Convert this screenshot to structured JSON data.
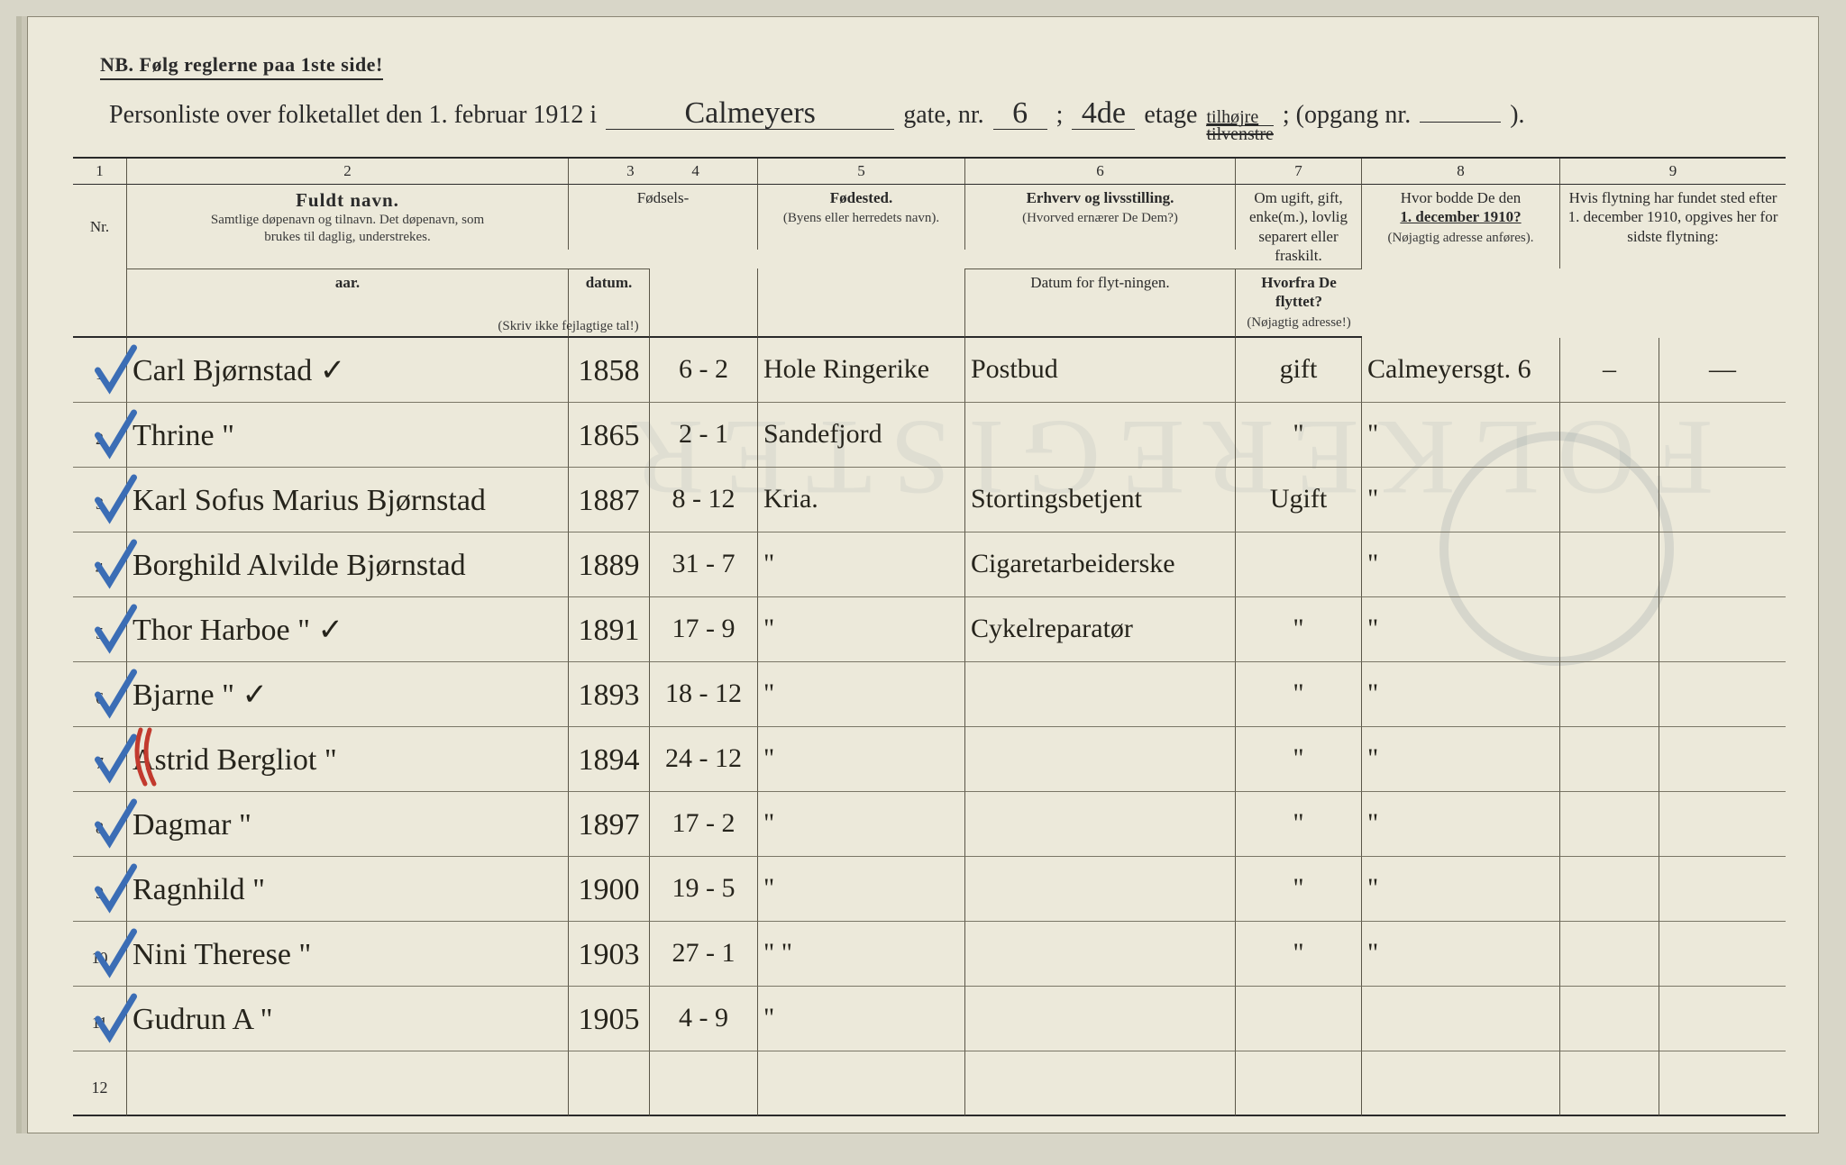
{
  "page": {
    "nb": "NB.   Følg reglerne paa 1ste side!",
    "title_prefix": "Personliste over folketallet den 1. februar 1912 i",
    "street": "Calmeyers",
    "gate_label": "gate, nr.",
    "house_nr": "6",
    "semicolon": ";",
    "floor": "4de",
    "etage_label": "etage",
    "side_top": "tilhøjre",
    "side_bot": "tilvenstre",
    "opgang": "; (opgang nr.",
    "opgang_val": "",
    "close": ")."
  },
  "colnums": [
    "1",
    "2",
    "3",
    "4",
    "5",
    "6",
    "7",
    "8",
    "9"
  ],
  "headers": {
    "nr": "Nr.",
    "name_title": "Fuldt navn.",
    "name_sub1": "Samtlige døpenavn og tilnavn.  Det døpenavn, som",
    "name_sub2": "brukes til daglig, understrekes.",
    "fodsels": "Fødsels-",
    "aar": "aar.",
    "datum": "datum.",
    "aar_note": "(Skriv ikke fejlagtige tal!)",
    "fodested": "Fødested.",
    "fodested_sub": "(Byens eller herredets navn).",
    "erhverv": "Erhverv og livsstilling.",
    "erhverv_sub": "(Hvorved ernærer De Dem?)",
    "civil": "Om ugift, gift, enke(m.), lovlig separert eller fraskilt.",
    "addr1910": "Hvor bodde De den",
    "addr1910b": "1. december 1910?",
    "addr1910_sub": "(Nøjagtig adresse anføres).",
    "move": "Hvis flytning har fundet sted efter 1. december 1910, opgives her for sidste flytning:",
    "move_date": "Datum for flyt-ningen.",
    "move_from": "Hvorfra De flyttet?",
    "move_from_sub": "(Nøjagtig adresse!)"
  },
  "rows": [
    {
      "nr": "1",
      "name": "Carl  Bjørnstad        ✓",
      "year": "1858",
      "date": "6 - 2",
      "place": "Hole Ringerike",
      "occ": "Postbud",
      "civil": "gift",
      "addr": "Calmeyersgt. 6",
      "mdate": "–",
      "mfrom": "—",
      "blue": true
    },
    {
      "nr": "2",
      "name": "Thrine        \"",
      "year": "1865",
      "date": "2 - 1",
      "place": "Sandefjord",
      "occ": "",
      "civil": "\"",
      "addr": "\"",
      "mdate": "",
      "mfrom": "",
      "blue": true
    },
    {
      "nr": "3",
      "name": "Karl Sofus Marius Bjørnstad",
      "year": "1887",
      "date": "8 - 12",
      "place": "Kria.",
      "occ": "Stortingsbetjent",
      "civil": "Ugift",
      "addr": "\"",
      "mdate": "",
      "mfrom": "",
      "blue": true
    },
    {
      "nr": "4",
      "name": "Borghild Alvilde Bjørnstad",
      "year": "1889",
      "date": "31 - 7",
      "place": "\"",
      "occ": "Cigaretarbeiderske",
      "civil": "",
      "addr": "\"",
      "mdate": "",
      "mfrom": "",
      "blue": true
    },
    {
      "nr": "5",
      "name": "Thor Harboe     \"   ✓",
      "year": "1891",
      "date": "17 - 9",
      "place": "\"",
      "occ": "Cykelreparatør",
      "civil": "\"",
      "addr": "\"",
      "mdate": "",
      "mfrom": "",
      "blue": true
    },
    {
      "nr": "6",
      "name": "Bjarne          \"   ✓",
      "year": "1893",
      "date": "18 - 12",
      "place": "\"",
      "occ": "",
      "civil": "\"",
      "addr": "\"",
      "mdate": "",
      "mfrom": "",
      "blue": true
    },
    {
      "nr": "7",
      "name": "Astrid Bergliot   \"",
      "year": "1894",
      "date": "24 - 12",
      "place": "\"",
      "occ": "",
      "civil": "\"",
      "addr": "\"",
      "mdate": "",
      "mfrom": "",
      "blue": true,
      "red": true
    },
    {
      "nr": "8",
      "name": "Dagmar         \"",
      "year": "1897",
      "date": "17 - 2",
      "place": "\"",
      "occ": "",
      "civil": "\"",
      "addr": "\"",
      "mdate": "",
      "mfrom": "",
      "blue": true
    },
    {
      "nr": "9",
      "name": "Ragnhild       \"",
      "year": "1900",
      "date": "19 - 5",
      "place": "\"",
      "occ": "",
      "civil": "\"",
      "addr": "\"",
      "mdate": "",
      "mfrom": "",
      "blue": true
    },
    {
      "nr": "10",
      "name": "Nini Therese   \"",
      "year": "1903",
      "date": "27 - 1",
      "place": "\"   \"",
      "occ": "",
      "civil": "\"",
      "addr": "\"",
      "mdate": "",
      "mfrom": "",
      "blue": true
    },
    {
      "nr": "11",
      "name": "Gudrun A       \"",
      "year": "1905",
      "date": "4 - 9",
      "place": "\"",
      "occ": "",
      "civil": "",
      "addr": "",
      "mdate": "",
      "mfrom": "",
      "blue": true
    },
    {
      "nr": "12",
      "name": "",
      "year": "",
      "date": "",
      "place": "",
      "occ": "",
      "civil": "",
      "addr": "",
      "mdate": "",
      "mfrom": "",
      "blue": false
    }
  ],
  "colors": {
    "blue_pencil": "#3b6db5",
    "red_pencil": "#c23a2e",
    "ink": "#26241c"
  }
}
